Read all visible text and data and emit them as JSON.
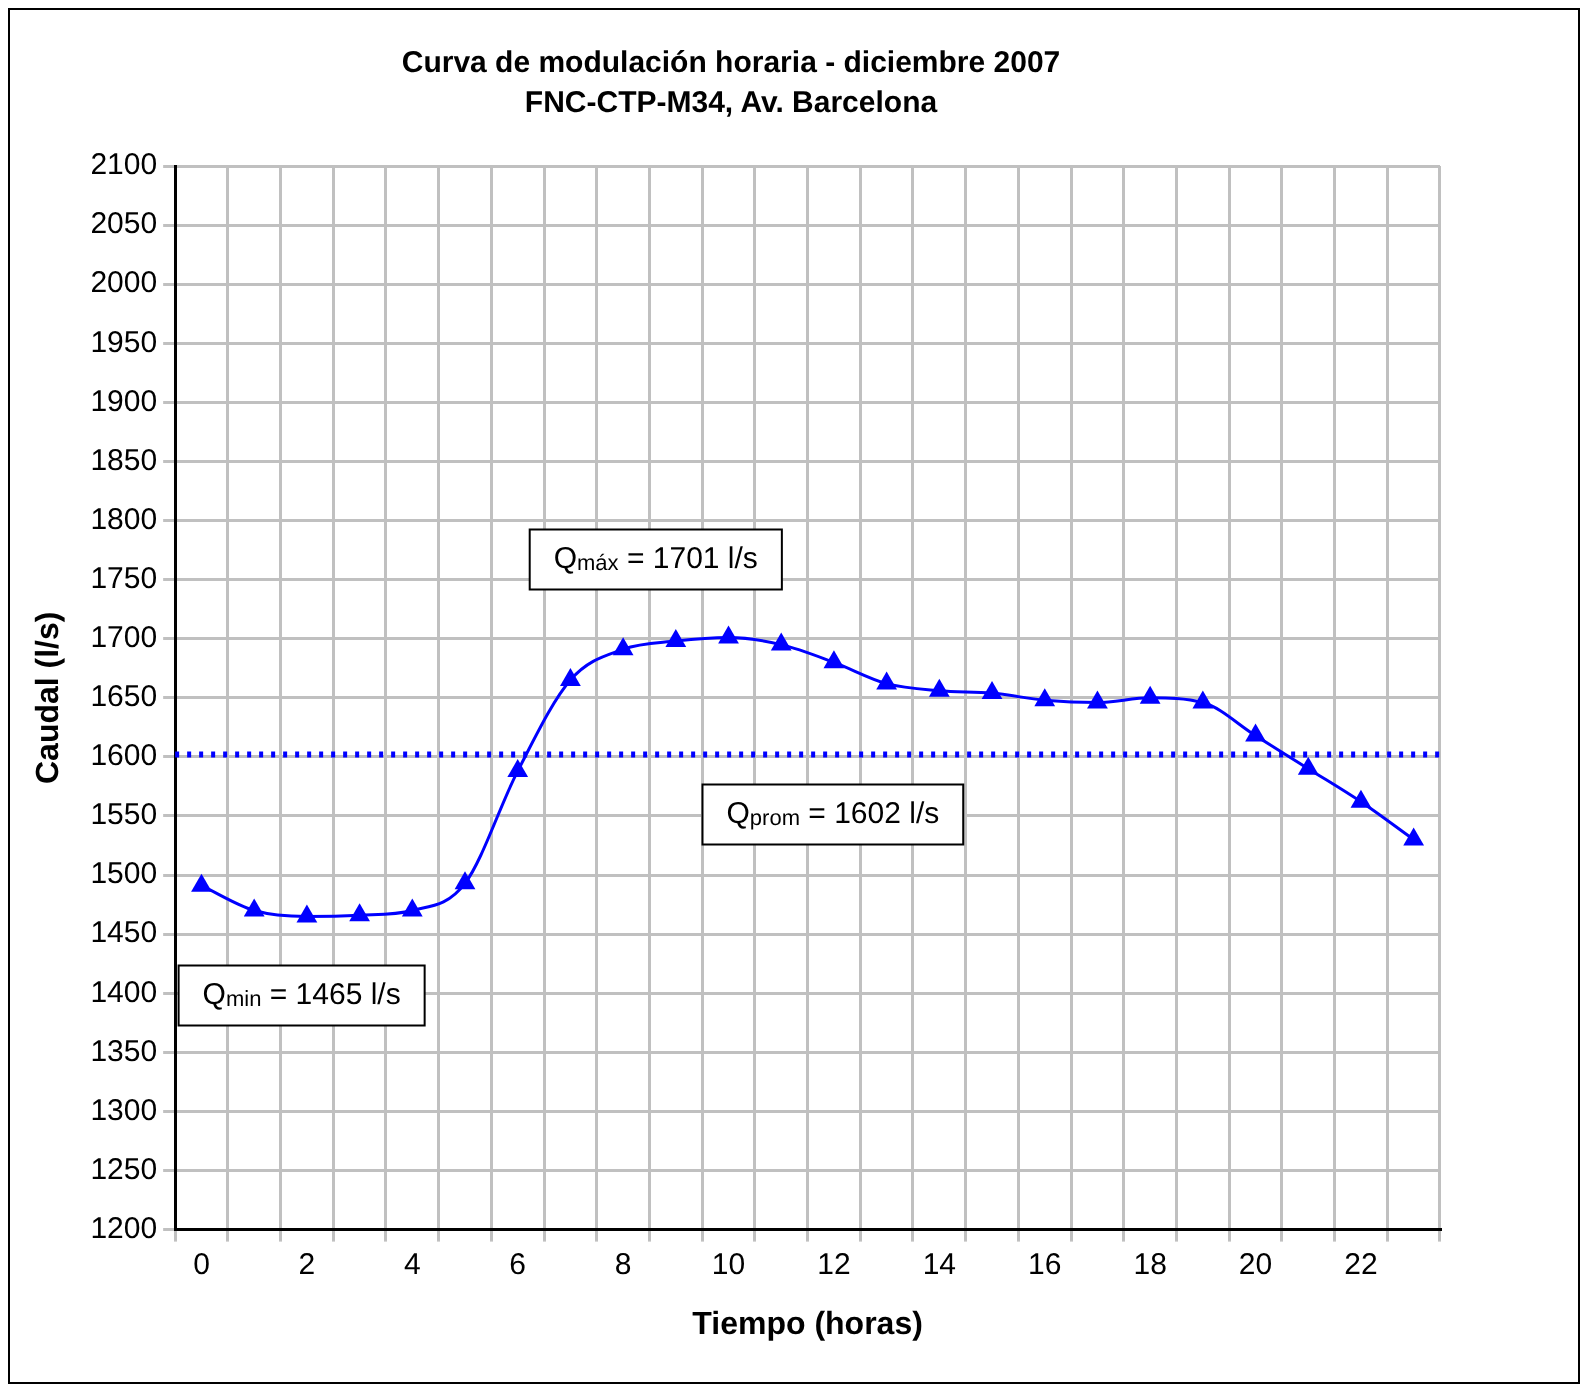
{
  "chart_data": {
    "type": "line",
    "title": "Curva de modulación horaria - diciembre 2007",
    "subtitle": "FNC-CTP-M34, Av. Barcelona",
    "xlabel": "Tiempo (horas)",
    "ylabel": "Caudal (l/s)",
    "categories": [
      "0",
      null,
      "2",
      null,
      "4",
      null,
      "6",
      null,
      "8",
      null,
      "10",
      null,
      "12",
      null,
      "14",
      null,
      "16",
      null,
      "18",
      null,
      "20",
      null,
      "22",
      null
    ],
    "series": [
      {
        "color": "#0000ff",
        "values": [
          1491,
          1470,
          1465,
          1466,
          1470,
          1493,
          1588,
          1665,
          1691,
          1698,
          1701,
          1695,
          1680,
          1662,
          1656,
          1654,
          1648,
          1646,
          1650,
          1646,
          1618,
          1590,
          1562,
          1530
        ]
      }
    ],
    "ylim": [
      1200,
      2100
    ],
    "yticks": [
      1200,
      1250,
      1300,
      1350,
      1400,
      1450,
      1500,
      1550,
      1600,
      1650,
      1700,
      1750,
      1800,
      1850,
      1900,
      1950,
      2000,
      2050,
      2100
    ],
    "grid": true,
    "legend": false,
    "marker": "triangle",
    "line_style": "solid",
    "ref_lines": [
      {
        "axis": "y",
        "value": 1602,
        "label": "Q$_{prom}$ = 1602 l/s",
        "color": "#0000ff",
        "line_style": "dotted"
      }
    ],
    "annotations": [
      "Q$_{máx}$ = 1701 l/s",
      "Q$_{min}$ = 1465 l/s"
    ]
  }
}
